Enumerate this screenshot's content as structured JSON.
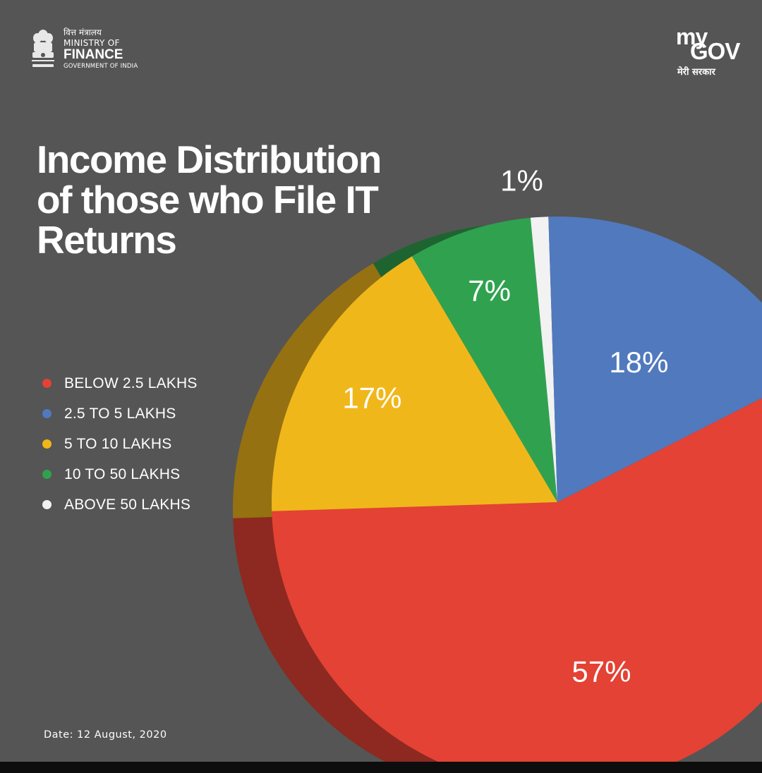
{
  "header": {
    "ministry": {
      "hindi": "वित्त मंत्रालय",
      "line1": "MINISTRY OF",
      "line2": "FINANCE",
      "line3": "GOVERNMENT OF INDIA",
      "emblem_icon": "state-emblem-icon"
    },
    "mygov": {
      "my": "my",
      "gov": "GOV",
      "hindi": "मेरी सरकार"
    }
  },
  "footer": {
    "date": "Date: 12 August, 2020"
  },
  "colors": {
    "background": "#555555",
    "below_2_5": "#E34234",
    "2_5_to_5": "#5179BD",
    "5_to_10": "#F0B71B",
    "10_to_50": "#30A24F",
    "above_50": "#F2F2F2"
  },
  "chart_data": {
    "type": "pie",
    "title": "Income Distribution of those who File IT Returns",
    "title_lines": [
      "Income Distribution",
      "of those who File IT",
      "Returns"
    ],
    "legend_position": "left",
    "slices": [
      {
        "label": "BELOW 2.5 LAKHS",
        "value": 57,
        "display": "57%",
        "color": "#E34234"
      },
      {
        "label": "2.5 TO 5 LAKHS",
        "value": 18,
        "display": "18%",
        "color": "#5179BD"
      },
      {
        "label": "5 TO 10 LAKHS",
        "value": 17,
        "display": "17%",
        "color": "#F0B71B"
      },
      {
        "label": "10 TO 50 LAKHS",
        "value": 7,
        "display": "7%",
        "color": "#30A24F"
      },
      {
        "label": "ABOVE 50 LAKHS",
        "value": 1,
        "display": "1%",
        "color": "#F2F2F2"
      }
    ]
  }
}
